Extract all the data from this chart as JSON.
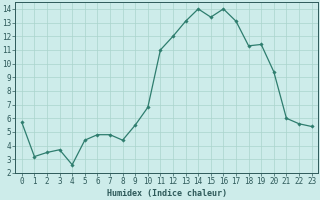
{
  "x": [
    0,
    1,
    2,
    3,
    4,
    5,
    6,
    7,
    8,
    9,
    10,
    11,
    12,
    13,
    14,
    15,
    16,
    17,
    18,
    19,
    20,
    21,
    22,
    23
  ],
  "y": [
    5.7,
    3.2,
    3.5,
    3.7,
    2.6,
    4.4,
    4.8,
    4.8,
    4.4,
    5.5,
    6.8,
    11.0,
    12.0,
    13.1,
    14.0,
    13.4,
    14.0,
    13.1,
    11.3,
    11.4,
    9.4,
    6.0,
    5.6,
    5.4
  ],
  "line_color": "#2e7d6e",
  "marker": "D",
  "marker_size": 1.8,
  "bg_color": "#cdecea",
  "grid_color": "#aad4cc",
  "xlabel": "Humidex (Indice chaleur)",
  "ylim": [
    2,
    14.5
  ],
  "xlim": [
    -0.5,
    23.5
  ],
  "yticks": [
    2,
    3,
    4,
    5,
    6,
    7,
    8,
    9,
    10,
    11,
    12,
    13,
    14
  ],
  "xticks": [
    0,
    1,
    2,
    3,
    4,
    5,
    6,
    7,
    8,
    9,
    10,
    11,
    12,
    13,
    14,
    15,
    16,
    17,
    18,
    19,
    20,
    21,
    22,
    23
  ],
  "label_fontsize": 6.0,
  "tick_fontsize": 5.5,
  "line_width": 0.9
}
